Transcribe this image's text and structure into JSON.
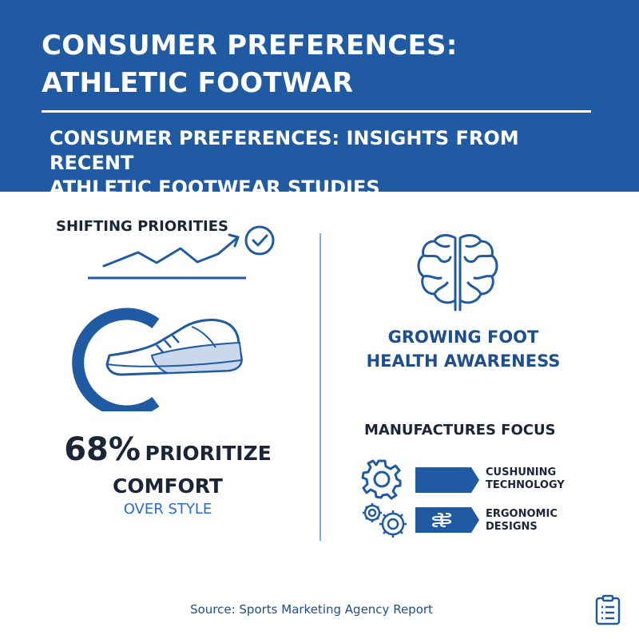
{
  "header": {
    "title": "CONSUMER PREFERENCES:\nATHLETIC FOOTWAR",
    "subtitle": "CONSUMER PREFERENCES: INSIGHTS FROM RECENT\nATHLETIC FOOTWEAR STUDIES"
  },
  "left_panel": {
    "section_label": "SHIFTING PRIORITIES",
    "icons": [
      "trend-line-icon",
      "checkmark-circle-icon",
      "sneaker-icon"
    ],
    "stat": {
      "value": "68%",
      "text_line1": "PRIORITIZE",
      "text_line2": "COMFORT",
      "subtext": "OVER STYLE"
    }
  },
  "right_panel": {
    "icon": "brain-icon",
    "health_text": "GROWING FOOT\nHEALTH AWARENESS",
    "focus_title": "MANUFACTURES FOCUS",
    "features": [
      {
        "icon": "gear-icon",
        "label": "CUSHUNING\nTECHNOLOGY"
      },
      {
        "icon": "double-gear-icon",
        "label": "ERGONOMIC\nDESIGNS"
      }
    ]
  },
  "footer": {
    "source": "Source: Sports Marketing Agency Report",
    "icon": "clipboard-icon"
  },
  "colors": {
    "header_bg": "#1f5aa3",
    "accent_blue": "#2b6cc4",
    "dark_text": "#1a2538",
    "navy": "#1f4e8c"
  }
}
